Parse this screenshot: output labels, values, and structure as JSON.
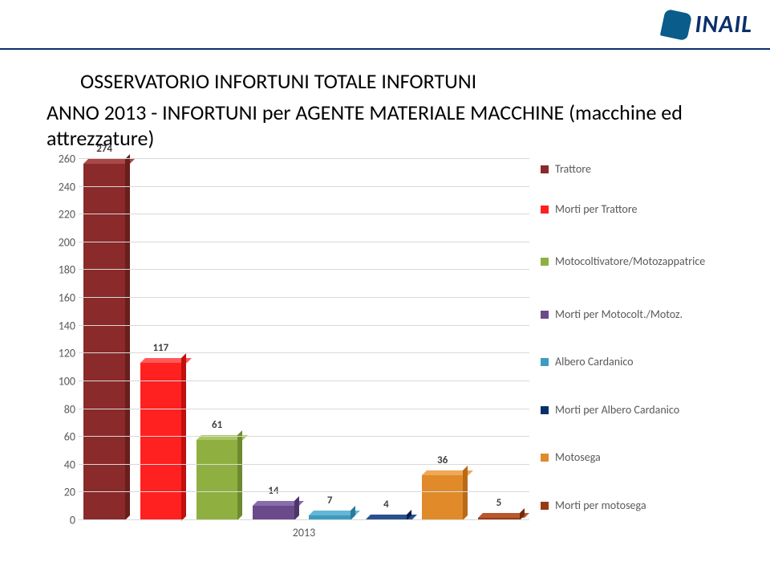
{
  "logo_text": "INAIL",
  "title": "OSSERVATORIO INFORTUNI TOTALE INFORTUNI",
  "subtitle": "ANNO 2013 - INFORTUNI per AGENTE MATERIALE MACCHINE (macchine ed attrezzature)",
  "chart": {
    "type": "bar",
    "x_label": "2013",
    "y": {
      "min": 0,
      "max": 260,
      "step": 20,
      "ticks": [
        0,
        20,
        40,
        60,
        80,
        100,
        120,
        140,
        160,
        180,
        200,
        220,
        240,
        260
      ]
    },
    "background_color": "#ffffff",
    "grid_color": "#d9d9d9",
    "tick_color": "#595959",
    "tick_fontsize": 14,
    "title_fontsize": 26,
    "bars": [
      {
        "label": "274",
        "value": 274,
        "front": "#8a2a2a",
        "top": "#a84848",
        "side": "#6a1e1e"
      },
      {
        "label": "117",
        "value": 117,
        "front": "#ff2020",
        "top": "#ff5a5a",
        "side": "#c01010"
      },
      {
        "label": "61",
        "value": 61,
        "front": "#8fb040",
        "top": "#aac860",
        "side": "#6e8a2e"
      },
      {
        "label": "14",
        "value": 14,
        "front": "#6a4a8a",
        "top": "#8a6cac",
        "side": "#4e3468"
      },
      {
        "label": "7",
        "value": 7,
        "front": "#3c9cc0",
        "top": "#64b6d6",
        "side": "#2a7a9a"
      },
      {
        "label": "4",
        "value": 4,
        "front": "#0a2f6b",
        "top": "#2a5090",
        "side": "#061e48"
      },
      {
        "label": "36",
        "value": 36,
        "front": "#e08a2a",
        "top": "#f0a858",
        "side": "#b86a18"
      },
      {
        "label": "5",
        "value": 5,
        "front": "#9a3a14",
        "top": "#b85830",
        "side": "#742a0c"
      }
    ],
    "legend": [
      {
        "label": "Trattore",
        "color": "#8a2a2a"
      },
      {
        "label": "Morti per Trattore",
        "color": "#ff2020"
      },
      {
        "label": "Motocoltivatore/Motozappatrice",
        "color": "#8fb040"
      },
      {
        "label": "Morti per Motocolt./Motoz.",
        "color": "#6a4a8a"
      },
      {
        "label": "Albero Cardanico",
        "color": "#3c9cc0"
      },
      {
        "label": "Morti per Albero Cardanico",
        "color": "#0a2f6b"
      },
      {
        "label": "Motosega",
        "color": "#e08a2a"
      },
      {
        "label": "Morti per motosega",
        "color": "#9a3a14"
      }
    ]
  }
}
